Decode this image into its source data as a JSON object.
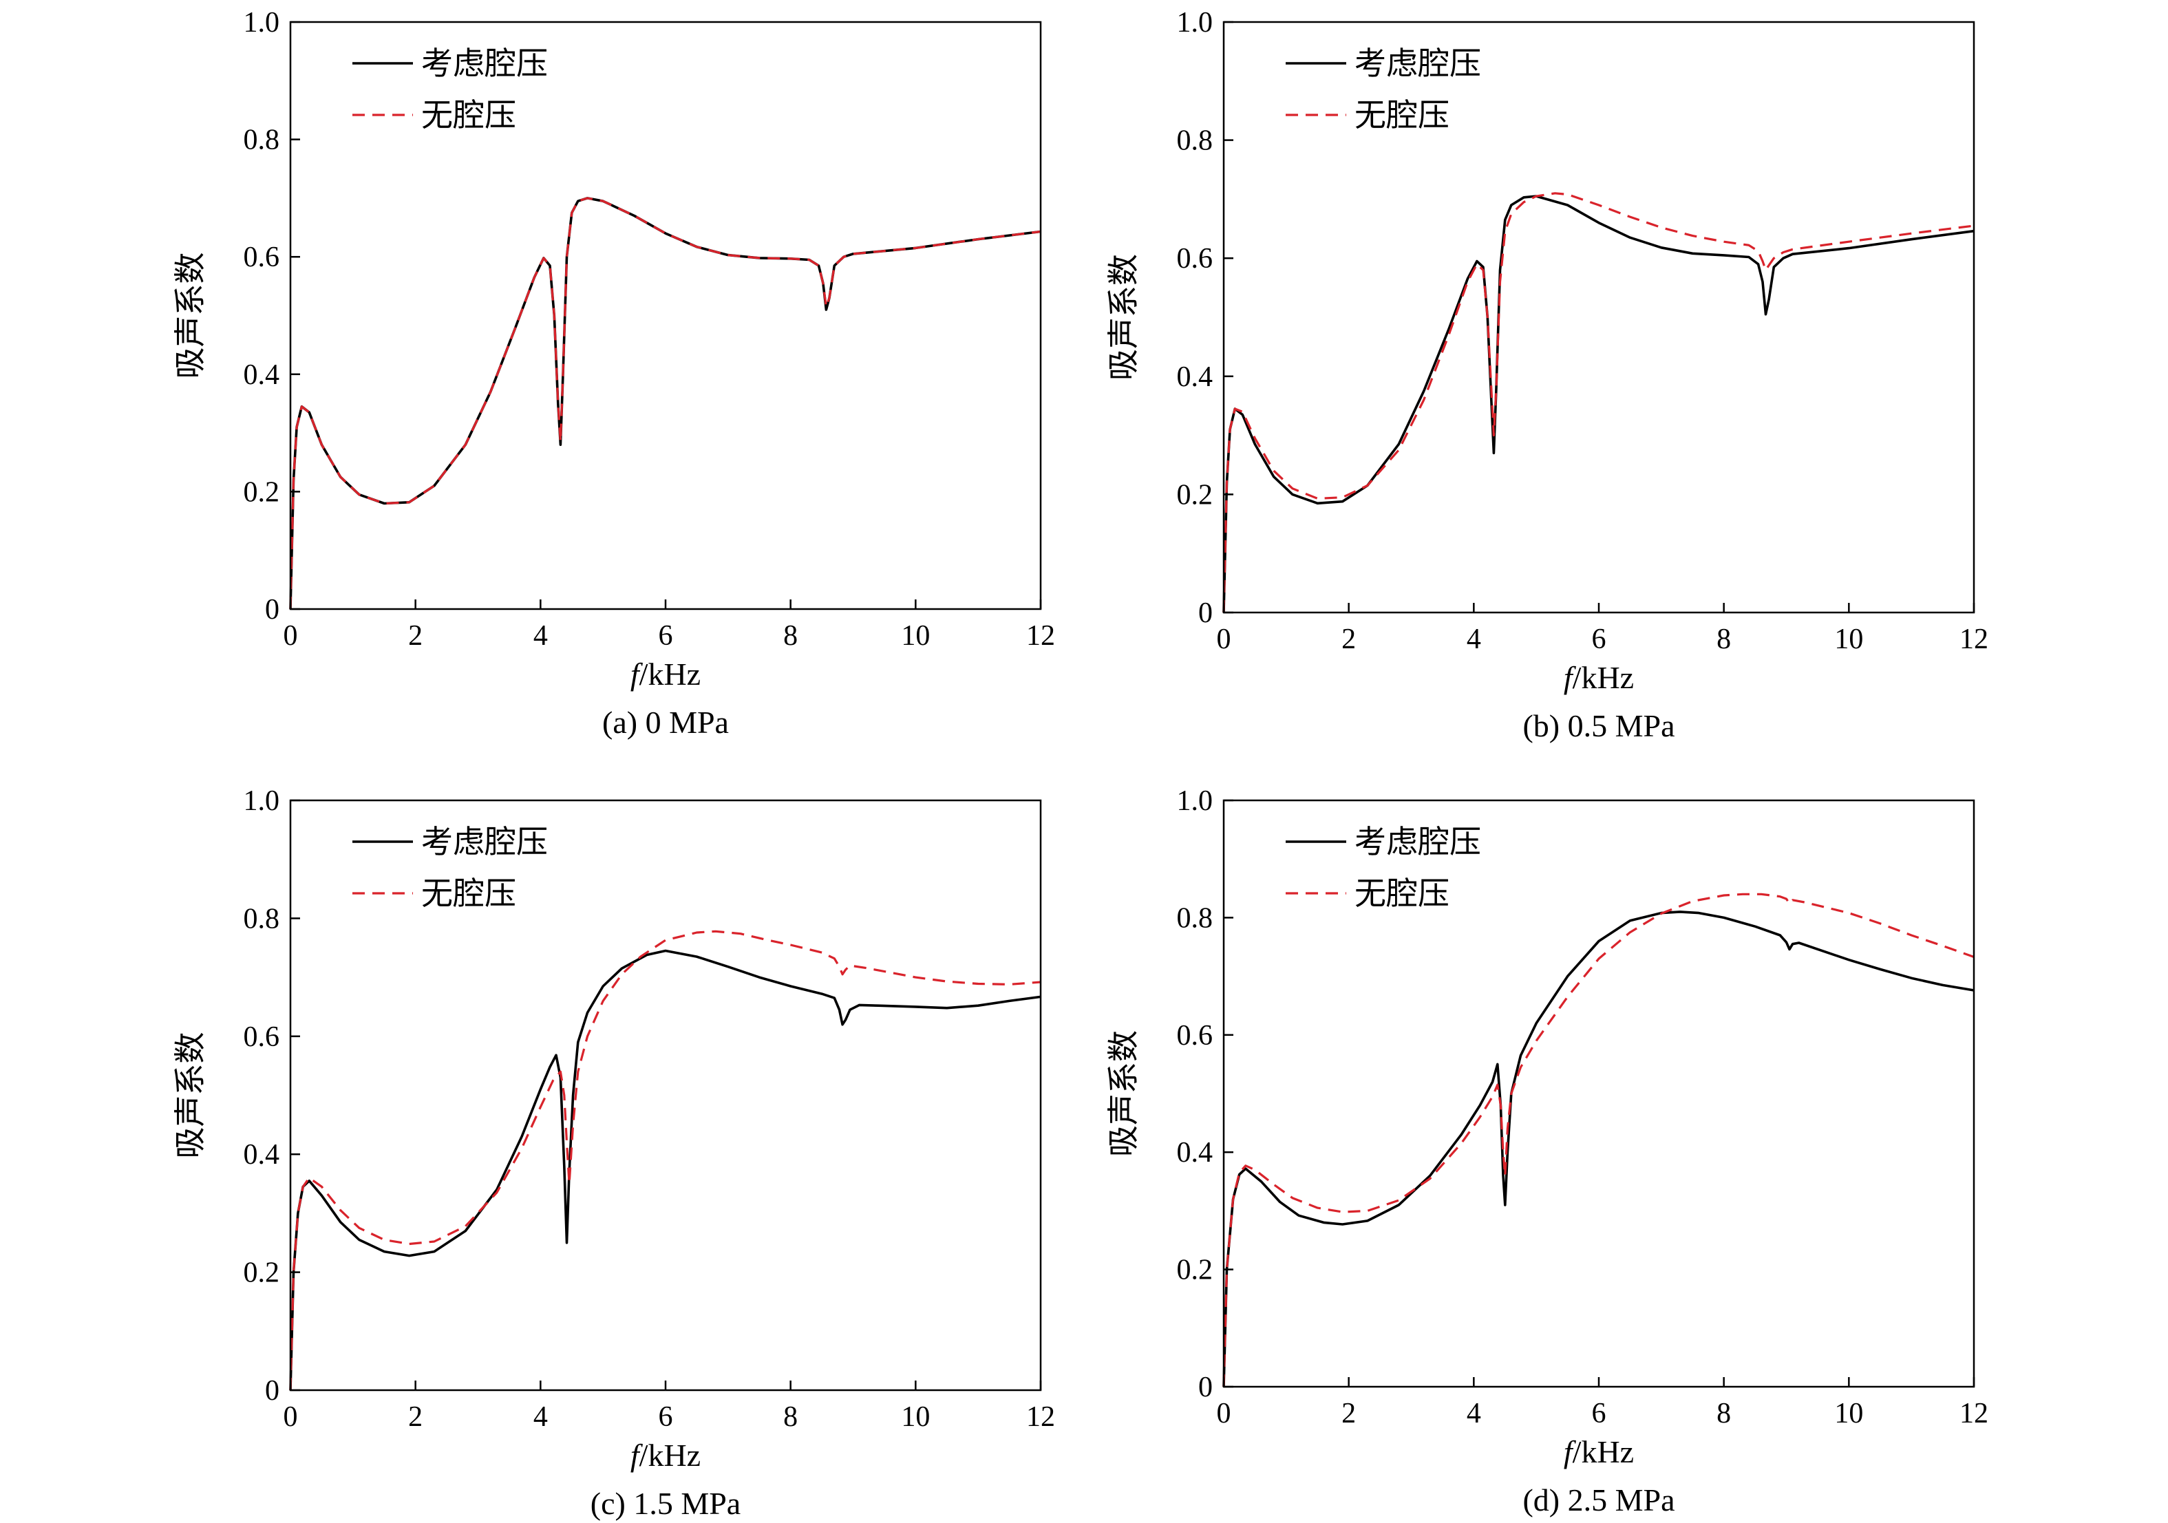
{
  "chart_data": [
    {
      "type": "line",
      "caption": "(a) 0 MPa",
      "xlabel_italic": "f",
      "xlabel_unit": "/kHz",
      "ylabel": "吸声系数",
      "xlim": [
        0,
        12
      ],
      "ylim": [
        0,
        1.0
      ],
      "xticks": [
        "0",
        "2",
        "4",
        "6",
        "8",
        "10",
        "12"
      ],
      "yticks": [
        "0",
        "0.2",
        "0.4",
        "0.6",
        "0.8",
        "1.0"
      ],
      "legend_position": "top-left",
      "series": [
        {
          "name": "考虑腔压",
          "color": "#000000",
          "dash": "solid",
          "x": [
            0,
            0.05,
            0.1,
            0.18,
            0.3,
            0.5,
            0.8,
            1.1,
            1.5,
            1.9,
            2.3,
            2.8,
            3.2,
            3.6,
            3.9,
            4.05,
            4.15,
            4.22,
            4.28,
            4.32,
            4.36,
            4.42,
            4.5,
            4.6,
            4.75,
            5.0,
            5.5,
            6.0,
            6.5,
            7.0,
            7.5,
            8.0,
            8.3,
            8.45,
            8.52,
            8.57,
            8.62,
            8.7,
            8.85,
            9.0,
            10.0,
            11.0,
            12.0
          ],
          "y": [
            0.0,
            0.22,
            0.31,
            0.345,
            0.335,
            0.28,
            0.225,
            0.195,
            0.18,
            0.182,
            0.21,
            0.28,
            0.37,
            0.48,
            0.565,
            0.598,
            0.585,
            0.5,
            0.35,
            0.28,
            0.4,
            0.6,
            0.675,
            0.695,
            0.7,
            0.695,
            0.67,
            0.64,
            0.617,
            0.603,
            0.598,
            0.597,
            0.595,
            0.585,
            0.555,
            0.51,
            0.53,
            0.585,
            0.6,
            0.605,
            0.615,
            0.63,
            0.643
          ]
        },
        {
          "name": "无腔压",
          "color": "#d9232b",
          "dash": "dashed",
          "x": [
            0,
            0.05,
            0.1,
            0.18,
            0.3,
            0.5,
            0.8,
            1.1,
            1.5,
            1.9,
            2.3,
            2.8,
            3.2,
            3.6,
            3.9,
            4.05,
            4.15,
            4.22,
            4.28,
            4.32,
            4.36,
            4.42,
            4.5,
            4.6,
            4.75,
            5.0,
            5.5,
            6.0,
            6.5,
            7.0,
            7.5,
            8.0,
            8.3,
            8.45,
            8.52,
            8.57,
            8.62,
            8.7,
            8.85,
            9.0,
            10.0,
            11.0,
            12.0
          ],
          "y": [
            0.0,
            0.22,
            0.31,
            0.345,
            0.335,
            0.28,
            0.225,
            0.195,
            0.18,
            0.182,
            0.21,
            0.28,
            0.37,
            0.48,
            0.565,
            0.598,
            0.585,
            0.5,
            0.35,
            0.285,
            0.4,
            0.6,
            0.675,
            0.695,
            0.7,
            0.695,
            0.67,
            0.64,
            0.617,
            0.603,
            0.598,
            0.597,
            0.595,
            0.585,
            0.555,
            0.515,
            0.53,
            0.585,
            0.6,
            0.605,
            0.615,
            0.63,
            0.643
          ]
        }
      ]
    },
    {
      "type": "line",
      "caption": "(b) 0.5 MPa",
      "xlabel_italic": "f",
      "xlabel_unit": "/kHz",
      "ylabel": "吸声系数",
      "xlim": [
        0,
        12
      ],
      "ylim": [
        0,
        1.0
      ],
      "xticks": [
        "0",
        "2",
        "4",
        "6",
        "8",
        "10",
        "12"
      ],
      "yticks": [
        "0",
        "0.2",
        "0.4",
        "0.6",
        "0.8",
        "1.0"
      ],
      "legend_position": "top-left",
      "series": [
        {
          "name": "考虑腔压",
          "color": "#000000",
          "dash": "solid",
          "x": [
            0,
            0.05,
            0.1,
            0.18,
            0.3,
            0.5,
            0.8,
            1.1,
            1.5,
            1.9,
            2.3,
            2.8,
            3.2,
            3.6,
            3.9,
            4.05,
            4.15,
            4.22,
            4.28,
            4.32,
            4.36,
            4.42,
            4.5,
            4.6,
            4.8,
            5.0,
            5.5,
            6.0,
            6.5,
            7.0,
            7.5,
            8.0,
            8.4,
            8.55,
            8.62,
            8.67,
            8.72,
            8.8,
            8.95,
            9.1,
            10.0,
            11.0,
            12.0
          ],
          "y": [
            0.0,
            0.22,
            0.31,
            0.345,
            0.335,
            0.285,
            0.23,
            0.2,
            0.185,
            0.188,
            0.215,
            0.285,
            0.375,
            0.48,
            0.565,
            0.595,
            0.585,
            0.5,
            0.36,
            0.27,
            0.38,
            0.58,
            0.665,
            0.69,
            0.703,
            0.705,
            0.69,
            0.66,
            0.635,
            0.618,
            0.608,
            0.605,
            0.602,
            0.59,
            0.56,
            0.505,
            0.53,
            0.585,
            0.6,
            0.607,
            0.617,
            0.632,
            0.646
          ]
        },
        {
          "name": "无腔压",
          "color": "#d9232b",
          "dash": "dashed",
          "x": [
            0,
            0.05,
            0.1,
            0.18,
            0.3,
            0.5,
            0.8,
            1.1,
            1.5,
            1.9,
            2.3,
            2.8,
            3.2,
            3.6,
            3.9,
            4.05,
            4.15,
            4.22,
            4.28,
            4.32,
            4.36,
            4.42,
            4.5,
            4.6,
            4.8,
            5.0,
            5.3,
            5.5,
            6.0,
            6.5,
            7.0,
            7.5,
            8.0,
            8.4,
            8.55,
            8.62,
            8.67,
            8.72,
            8.8,
            8.95,
            9.1,
            10.0,
            11.0,
            12.0
          ],
          "y": [
            0.0,
            0.22,
            0.31,
            0.345,
            0.34,
            0.295,
            0.24,
            0.21,
            0.193,
            0.195,
            0.215,
            0.275,
            0.36,
            0.47,
            0.56,
            0.59,
            0.58,
            0.5,
            0.38,
            0.3,
            0.38,
            0.56,
            0.645,
            0.675,
            0.695,
            0.705,
            0.71,
            0.708,
            0.69,
            0.67,
            0.652,
            0.638,
            0.628,
            0.622,
            0.612,
            0.595,
            0.58,
            0.588,
            0.6,
            0.61,
            0.615,
            0.628,
            0.642,
            0.655
          ]
        }
      ]
    },
    {
      "type": "line",
      "caption": "(c) 1.5 MPa",
      "xlabel_italic": "f",
      "xlabel_unit": "/kHz",
      "ylabel": "吸声系数",
      "xlim": [
        0,
        12
      ],
      "ylim": [
        0,
        1.0
      ],
      "xticks": [
        "0",
        "2",
        "4",
        "6",
        "8",
        "10",
        "12"
      ],
      "yticks": [
        "0",
        "0.2",
        "0.4",
        "0.6",
        "0.8",
        "1.0"
      ],
      "legend_position": "top-left",
      "series": [
        {
          "name": "考虑腔压",
          "color": "#000000",
          "dash": "solid",
          "x": [
            0,
            0.05,
            0.12,
            0.2,
            0.3,
            0.5,
            0.8,
            1.1,
            1.5,
            1.9,
            2.3,
            2.8,
            3.3,
            3.7,
            4.0,
            4.15,
            4.25,
            4.32,
            4.38,
            4.42,
            4.46,
            4.52,
            4.6,
            4.75,
            5.0,
            5.3,
            5.7,
            6.0,
            6.5,
            7.0,
            7.5,
            8.0,
            8.5,
            8.7,
            8.78,
            8.83,
            8.88,
            8.95,
            9.1,
            9.4,
            10.0,
            10.5,
            11.0,
            11.5,
            12.0
          ],
          "y": [
            0.0,
            0.2,
            0.3,
            0.345,
            0.355,
            0.33,
            0.285,
            0.255,
            0.235,
            0.228,
            0.235,
            0.27,
            0.34,
            0.43,
            0.51,
            0.548,
            0.568,
            0.53,
            0.38,
            0.25,
            0.37,
            0.5,
            0.59,
            0.64,
            0.685,
            0.715,
            0.738,
            0.745,
            0.735,
            0.718,
            0.7,
            0.685,
            0.672,
            0.665,
            0.645,
            0.62,
            0.628,
            0.645,
            0.653,
            0.652,
            0.65,
            0.648,
            0.652,
            0.66,
            0.667
          ]
        },
        {
          "name": "无腔压",
          "color": "#d9232b",
          "dash": "dashed",
          "x": [
            0,
            0.05,
            0.12,
            0.2,
            0.3,
            0.5,
            0.8,
            1.1,
            1.5,
            1.9,
            2.3,
            2.8,
            3.3,
            3.7,
            4.0,
            4.2,
            4.32,
            4.38,
            4.42,
            4.46,
            4.52,
            4.6,
            4.75,
            5.0,
            5.3,
            5.6,
            6.0,
            6.5,
            6.8,
            7.2,
            7.6,
            8.0,
            8.5,
            8.7,
            8.78,
            8.83,
            8.88,
            8.95,
            9.2,
            9.6,
            10.0,
            10.5,
            11.0,
            11.5,
            12.0
          ],
          "y": [
            0.0,
            0.2,
            0.3,
            0.345,
            0.36,
            0.345,
            0.305,
            0.275,
            0.255,
            0.248,
            0.252,
            0.278,
            0.335,
            0.41,
            0.48,
            0.525,
            0.54,
            0.5,
            0.42,
            0.35,
            0.45,
            0.54,
            0.6,
            0.66,
            0.705,
            0.735,
            0.763,
            0.776,
            0.778,
            0.774,
            0.764,
            0.755,
            0.742,
            0.732,
            0.718,
            0.705,
            0.713,
            0.72,
            0.716,
            0.708,
            0.7,
            0.693,
            0.689,
            0.688,
            0.692
          ]
        }
      ]
    },
    {
      "type": "line",
      "caption": "(d) 2.5 MPa",
      "xlabel_italic": "f",
      "xlabel_unit": "/kHz",
      "ylabel": "吸声系数",
      "xlim": [
        0,
        12
      ],
      "ylim": [
        0,
        1.0
      ],
      "xticks": [
        "0",
        "2",
        "4",
        "6",
        "8",
        "10",
        "12"
      ],
      "yticks": [
        "0",
        "0.2",
        "0.4",
        "0.6",
        "0.8",
        "1.0"
      ],
      "legend_position": "top-left",
      "series": [
        {
          "name": "考虑腔压",
          "color": "#000000",
          "dash": "solid",
          "x": [
            0,
            0.05,
            0.15,
            0.25,
            0.35,
            0.6,
            0.9,
            1.2,
            1.6,
            1.9,
            2.3,
            2.8,
            3.3,
            3.8,
            4.1,
            4.3,
            4.38,
            4.43,
            4.47,
            4.5,
            4.54,
            4.6,
            4.75,
            5.0,
            5.5,
            6.0,
            6.5,
            7.0,
            7.3,
            7.6,
            8.0,
            8.5,
            8.9,
            9.0,
            9.05,
            9.1,
            9.2,
            10.0,
            10.5,
            11.0,
            11.5,
            12.0
          ],
          "y": [
            0.0,
            0.2,
            0.32,
            0.362,
            0.372,
            0.35,
            0.315,
            0.292,
            0.28,
            0.277,
            0.283,
            0.31,
            0.36,
            0.43,
            0.48,
            0.52,
            0.55,
            0.48,
            0.36,
            0.31,
            0.4,
            0.5,
            0.565,
            0.62,
            0.7,
            0.76,
            0.795,
            0.808,
            0.81,
            0.808,
            0.8,
            0.785,
            0.77,
            0.758,
            0.746,
            0.755,
            0.757,
            0.728,
            0.712,
            0.697,
            0.685,
            0.676
          ]
        },
        {
          "name": "无腔压",
          "color": "#d9232b",
          "dash": "dashed",
          "x": [
            0,
            0.05,
            0.15,
            0.25,
            0.35,
            0.5,
            0.8,
            1.1,
            1.5,
            1.9,
            2.3,
            2.8,
            3.3,
            3.8,
            4.1,
            4.3,
            4.38,
            4.43,
            4.47,
            4.5,
            4.54,
            4.6,
            4.75,
            5.0,
            5.5,
            6.0,
            6.5,
            7.0,
            7.5,
            8.0,
            8.3,
            8.6,
            8.9,
            9.0,
            9.05,
            9.1,
            9.3,
            10.0,
            10.5,
            11.0,
            11.5,
            12.0
          ],
          "y": [
            0.0,
            0.2,
            0.32,
            0.365,
            0.377,
            0.37,
            0.345,
            0.322,
            0.305,
            0.298,
            0.3,
            0.318,
            0.355,
            0.415,
            0.46,
            0.495,
            0.515,
            0.48,
            0.4,
            0.36,
            0.44,
            0.5,
            0.545,
            0.59,
            0.665,
            0.73,
            0.775,
            0.807,
            0.828,
            0.838,
            0.84,
            0.84,
            0.836,
            0.832,
            0.824,
            0.83,
            0.826,
            0.808,
            0.79,
            0.77,
            0.752,
            0.733
          ]
        }
      ]
    }
  ]
}
